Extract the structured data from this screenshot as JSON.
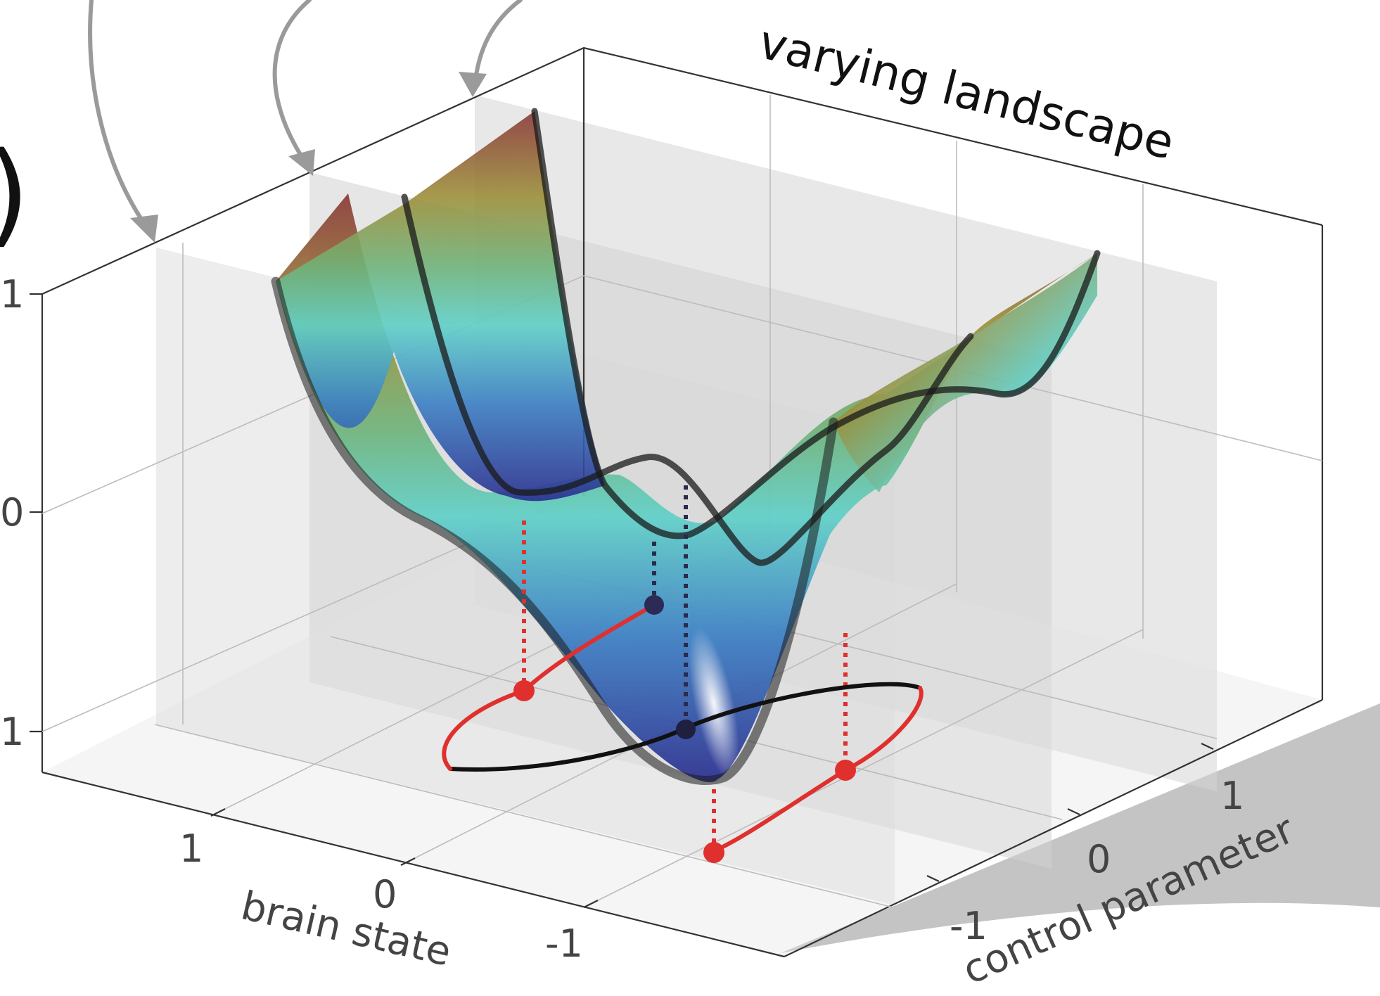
{
  "figure": {
    "panel_letter": ")"
  },
  "chart_data": {
    "type": "surface",
    "title": "varying landscape",
    "xlabel": "brain state",
    "ylabel": "control parameter",
    "zlabel": "",
    "x_ticks": [
      "1",
      "0",
      "-1"
    ],
    "y_ticks": [
      "-1",
      "0",
      "1"
    ],
    "z_ticks": [
      "1",
      "0",
      "1"
    ],
    "xlim": [
      -1.5,
      1.5
    ],
    "ylim": [
      -1.5,
      1.5
    ],
    "zlim": [
      -1,
      1
    ],
    "grid": true,
    "colormap": [
      "#2a2e8e",
      "#3b7fc4",
      "#5fd0c8",
      "#9bd16a",
      "#9c8f3a",
      "#8a3838"
    ],
    "landscape_slices_at_control": [
      -1.25,
      -0.75,
      0.75
    ],
    "trajectory": {
      "projected_loop": {
        "cx": 0,
        "cy": 0,
        "rx": 0.8,
        "ry": 1.2
      },
      "red_points": [
        {
          "brain_state": 0.6,
          "control": -0.9
        },
        {
          "brain_state": -0.6,
          "control": 0.9
        },
        {
          "brain_state": -0.2,
          "control": 1.2
        }
      ],
      "dark_points": [
        {
          "brain_state": 0.0,
          "control": -1.2
        },
        {
          "brain_state": 0.0,
          "control": 0.0
        }
      ]
    },
    "colors": {
      "trajectory_red": "#e0302e",
      "trajectory_black": "#111111",
      "arrow_gray": "#9a9a9a",
      "plane_gray": "#d6d6d6",
      "shadow_gray": "#c4c4c4"
    }
  }
}
